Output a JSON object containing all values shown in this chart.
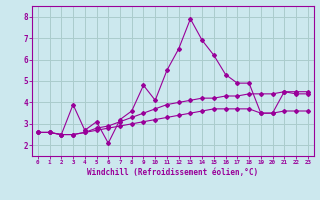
{
  "xlabel": "Windchill (Refroidissement éolien,°C)",
  "background_color": "#cce8ee",
  "grid_color": "#aacccc",
  "line_color": "#990099",
  "x_ticks": [
    0,
    1,
    2,
    3,
    4,
    5,
    6,
    7,
    8,
    9,
    10,
    11,
    12,
    13,
    14,
    15,
    16,
    17,
    18,
    19,
    20,
    21,
    22,
    23
  ],
  "ylim": [
    1.5,
    8.5
  ],
  "xlim": [
    -0.5,
    23.5
  ],
  "series1_x": [
    0,
    1,
    2,
    3,
    4,
    5,
    6,
    7,
    8,
    9,
    10,
    11,
    12,
    13,
    14,
    15,
    16,
    17,
    18,
    19,
    20,
    21,
    22,
    23
  ],
  "series1_y": [
    2.6,
    2.6,
    2.5,
    3.9,
    2.7,
    3.1,
    2.1,
    3.2,
    3.6,
    4.8,
    4.1,
    5.5,
    6.5,
    7.9,
    6.9,
    6.2,
    5.3,
    4.9,
    4.9,
    3.5,
    3.5,
    4.5,
    4.4,
    4.4
  ],
  "series2_x": [
    0,
    1,
    2,
    3,
    4,
    5,
    6,
    7,
    8,
    9,
    10,
    11,
    12,
    13,
    14,
    15,
    16,
    17,
    18,
    19,
    20,
    21,
    22,
    23
  ],
  "series2_y": [
    2.6,
    2.6,
    2.5,
    2.5,
    2.6,
    2.8,
    2.9,
    3.1,
    3.3,
    3.5,
    3.7,
    3.9,
    4.0,
    4.1,
    4.2,
    4.2,
    4.3,
    4.3,
    4.4,
    4.4,
    4.4,
    4.5,
    4.5,
    4.5
  ],
  "series3_x": [
    0,
    1,
    2,
    3,
    4,
    5,
    6,
    7,
    8,
    9,
    10,
    11,
    12,
    13,
    14,
    15,
    16,
    17,
    18,
    19,
    20,
    21,
    22,
    23
  ],
  "series3_y": [
    2.6,
    2.6,
    2.5,
    2.5,
    2.6,
    2.7,
    2.8,
    2.9,
    3.0,
    3.1,
    3.2,
    3.3,
    3.4,
    3.5,
    3.6,
    3.7,
    3.7,
    3.7,
    3.7,
    3.5,
    3.5,
    3.6,
    3.6,
    3.6
  ],
  "yticks": [
    2,
    3,
    4,
    5,
    6,
    7,
    8
  ]
}
